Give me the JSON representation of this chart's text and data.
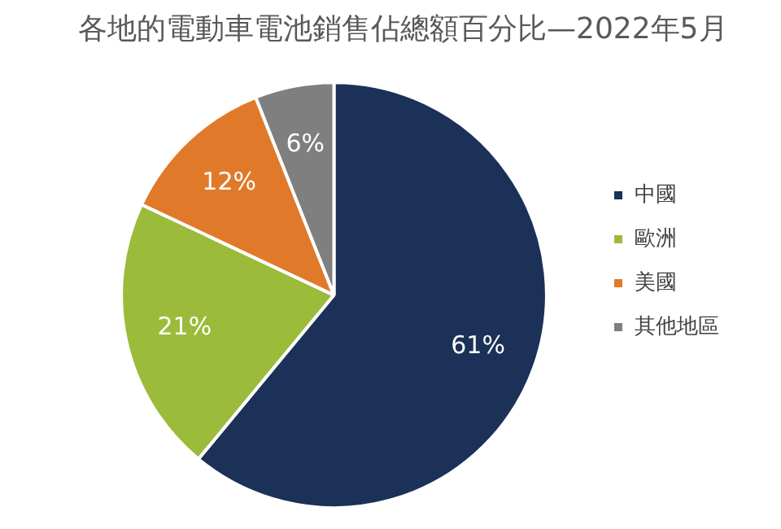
{
  "chart_data": {
    "type": "pie",
    "title": "各地的電動車電池銷售佔總額百分比—2022年5月",
    "categories": [
      "中國",
      "歐洲",
      "美國",
      "其他地區"
    ],
    "values": [
      61,
      21,
      12,
      6
    ],
    "colors": [
      "#1b3157",
      "#9cbb3b",
      "#e07a2a",
      "#7f7f7f"
    ],
    "value_labels": [
      "61%",
      "21%",
      "12%",
      "6%"
    ],
    "legend": "right"
  }
}
